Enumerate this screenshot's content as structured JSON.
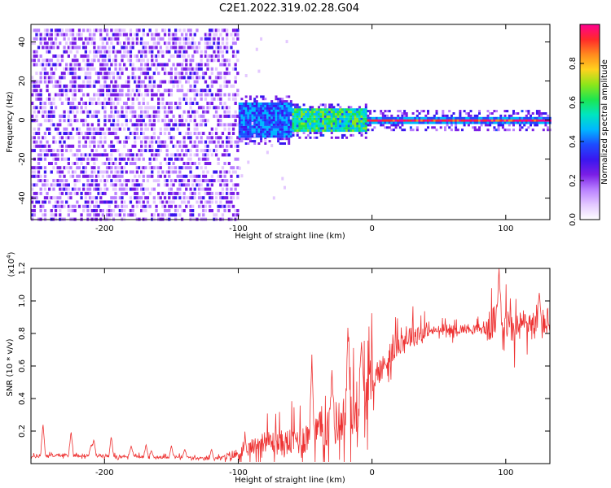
{
  "figure_title": "C2E1.2022.319.02.28.G04",
  "chart_data": [
    {
      "type": "heatmap",
      "name": "spectrogram",
      "xlabel": "Height of straight line (km)",
      "ylabel": "Frequency (Hz)",
      "xlim": [
        -255,
        133
      ],
      "ylim": [
        -51,
        49
      ],
      "xticks": [
        -200,
        -100,
        0,
        100
      ],
      "yticks": [
        -40,
        -20,
        0,
        20,
        40
      ],
      "colorbar": {
        "label": "Normalized spectral amplitude",
        "range": [
          0,
          1
        ],
        "ticks": [
          "0.0",
          "0.2",
          "0.4",
          "0.6",
          "0.8"
        ],
        "colors": [
          "#ffffff",
          "#e3c8ff",
          "#b980ff",
          "#7a1ee6",
          "#3a16f0",
          "#1d4dff",
          "#00b8ff",
          "#00e5c0",
          "#1de650",
          "#8ee61a",
          "#ffd21e",
          "#ff8a1e",
          "#ff2a2a",
          "#ff0090"
        ]
      },
      "regions": [
        {
          "x": [
            -255,
            -100
          ],
          "desc": "broadband noise",
          "freq_range": [
            -50,
            48
          ],
          "amplitude": [
            0.05,
            0.3
          ]
        },
        {
          "x": [
            -100,
            -60
          ],
          "desc": "signal emerging",
          "center_freq": 0,
          "halfwidth": 9,
          "amplitude": [
            0.3,
            0.5
          ]
        },
        {
          "x": [
            -60,
            -5
          ],
          "desc": "signal",
          "center_freq": 0,
          "halfwidth": 6,
          "amplitude": [
            0.4,
            0.7
          ]
        },
        {
          "x": [
            -5,
            133
          ],
          "desc": "coherent tone",
          "center_freq": 0,
          "halfwidth": 2,
          "amplitude": [
            0.85,
            1.0
          ]
        }
      ]
    },
    {
      "type": "line",
      "name": "snr",
      "xlabel": "Height of straight line (km)",
      "ylabel": "SNR (10 * v/v)",
      "y_multiplier": "(x10",
      "y_multiplier_exp": "4",
      "y_multiplier_close": ")",
      "xlim": [
        -255,
        133
      ],
      "ylim": [
        0,
        1.2
      ],
      "xticks": [
        -200,
        -100,
        0,
        100
      ],
      "yticks": [
        "0.2",
        "0.4",
        "0.6",
        "0.8",
        "1.0",
        "1.2"
      ],
      "color": "#ee3333",
      "series": [
        {
          "x": [
            -255,
            -245,
            -240,
            -230,
            -220,
            -210,
            -200,
            -190,
            -180,
            -170,
            -160,
            -150,
            -140,
            -130,
            -120,
            -110,
            -100,
            -95,
            -90,
            -85,
            -80,
            -75,
            -70,
            -65,
            -60,
            -55,
            -50,
            -45,
            -40,
            -35,
            -30,
            -25,
            -20,
            -15,
            -10,
            -5,
            0,
            5,
            10,
            15,
            20,
            25,
            30,
            40,
            50,
            60,
            70,
            80,
            85,
            90,
            95,
            100,
            105,
            110,
            115,
            120,
            125,
            130,
            133
          ],
          "y": [
            0.04,
            0.05,
            0.05,
            0.05,
            0.05,
            0.05,
            0.05,
            0.04,
            0.05,
            0.04,
            0.04,
            0.04,
            0.04,
            0.03,
            0.03,
            0.04,
            0.06,
            0.08,
            0.1,
            0.12,
            0.14,
            0.13,
            0.13,
            0.12,
            0.14,
            0.15,
            0.16,
            0.18,
            0.2,
            0.22,
            0.24,
            0.26,
            0.28,
            0.32,
            0.36,
            0.42,
            0.5,
            0.56,
            0.62,
            0.68,
            0.74,
            0.77,
            0.79,
            0.81,
            0.82,
            0.82,
            0.83,
            0.83,
            0.82,
            0.86,
            0.9,
            0.87,
            0.82,
            0.84,
            0.87,
            0.85,
            0.83,
            0.88,
            0.86
          ]
        }
      ],
      "peaks": [
        {
          "x": -246,
          "y": 0.25
        },
        {
          "x": -225,
          "y": 0.2
        },
        {
          "x": -210,
          "y": 0.12
        },
        {
          "x": -208,
          "y": 0.15
        },
        {
          "x": -195,
          "y": 0.17
        },
        {
          "x": -180,
          "y": 0.11
        },
        {
          "x": -169,
          "y": 0.12
        },
        {
          "x": -165,
          "y": 0.08
        },
        {
          "x": -150,
          "y": 0.11
        },
        {
          "x": -140,
          "y": 0.09
        },
        {
          "x": -120,
          "y": 0.09
        },
        {
          "x": -45,
          "y": 0.67
        },
        {
          "x": -30,
          "y": 0.58
        },
        {
          "x": -18,
          "y": 0.85
        },
        {
          "x": -8,
          "y": 0.76
        },
        {
          "x": 95,
          "y": 1.2
        },
        {
          "x": 125,
          "y": 1.06
        }
      ]
    }
  ]
}
